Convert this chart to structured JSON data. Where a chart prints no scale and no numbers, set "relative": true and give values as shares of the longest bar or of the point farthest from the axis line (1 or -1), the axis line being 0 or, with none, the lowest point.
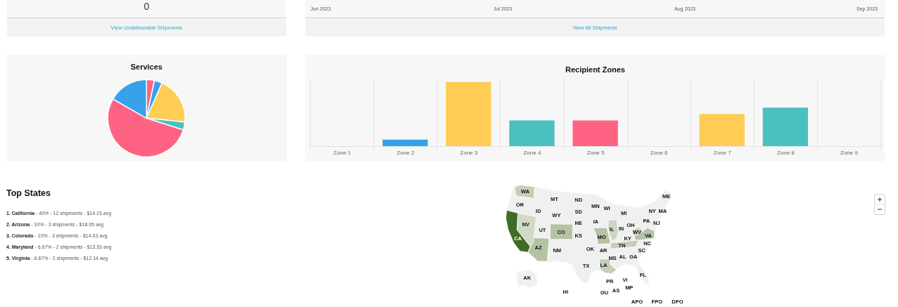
{
  "chart_data": [
    {
      "type": "other",
      "annotations": [
        "0",
        "View Undeliverable Shipments"
      ]
    },
    {
      "type": "other",
      "annotations": [
        "Jun 2023",
        "Jul 2023",
        "Aug 2023",
        "Sep 2023",
        "View All Shipments"
      ]
    },
    {
      "type": "pie",
      "title": "Services",
      "categories": [
        null,
        null,
        null,
        null,
        null,
        null
      ],
      "values": [
        3.3,
        3.3,
        20,
        3.3,
        53.4,
        16.7
      ],
      "colors": [
        "#ff6384",
        "#36a2eb",
        "#ffcd56",
        "#4bc0c0",
        "#ff6384",
        "#36a2eb"
      ],
      "legend": false
    },
    {
      "type": "bar",
      "title": "Recipient Zones",
      "categories": [
        "Zone 1",
        "Zone 2",
        "Zone 3",
        "Zone 4",
        "Zone 5",
        "Zone 6",
        "Zone 7",
        "Zone 8",
        "Zone 9"
      ],
      "values": [
        0,
        0.1,
        1,
        0.4,
        0.4,
        0,
        0.5,
        0.6,
        0
      ],
      "colors": [
        "#ff6384",
        "#36a2eb",
        "#ffcd56",
        "#4bc0c0",
        "#ff6384",
        "#36a2eb",
        "#ffcd56",
        "#4bc0c0",
        "#ff6384"
      ],
      "relative": true,
      "grid": "x"
    },
    {
      "type": "other",
      "title": "Top States",
      "annotations": [
        "1. California - 40% - 12 shipments - $14.15 avg",
        "2. Arizona - 10% - 3 shipments - $18.95 avg",
        "3. Colorado - 10% - 3 shipments - $14.03 avg",
        "4. Maryland - 6.67% - 2 shipments - $13.53 avg",
        "5. Virginia - 6.67% - 2 shipments - $12.14 avg"
      ]
    },
    {
      "type": "other",
      "categories": [
        "WA",
        "MT",
        "ND",
        "ME",
        "OR",
        "MN",
        "WI",
        "ID",
        "SD",
        "MI",
        "NY",
        "MA",
        "WY",
        "PA",
        "IA",
        "NJ",
        "NE",
        "NV",
        "OH",
        "IN",
        "IL",
        "UT",
        "WV",
        "CO",
        "VA",
        "KS",
        "MO",
        "KY",
        "CA",
        "NC",
        "TN",
        "AZ",
        "OK",
        "SC",
        "AR",
        "NM",
        "AL",
        "GA",
        "MS",
        "LA",
        "TX",
        "FL",
        "AK",
        "VI",
        "PR",
        "MP",
        "AS",
        "HI",
        "GU",
        "APO",
        "FPO",
        "DPO"
      ],
      "colors": [
        "#c3cfb6",
        null,
        null,
        null,
        null,
        null,
        null,
        null,
        null,
        null,
        null,
        null,
        null,
        null,
        null,
        null,
        null,
        "#d0dac6",
        null,
        null,
        "#ccd6c2",
        null,
        "#c9d3be",
        "#b5c3a5",
        "#b5c3a5",
        null,
        "#b5c3a5",
        null,
        "#3f6b25",
        null,
        "#c3cfb6",
        "#b5c3a5",
        null,
        null,
        null,
        null,
        null,
        null,
        null,
        "#c3cfb6",
        null,
        null,
        null,
        null,
        null,
        null,
        null,
        null,
        null,
        null,
        null,
        null
      ]
    }
  ]
}
